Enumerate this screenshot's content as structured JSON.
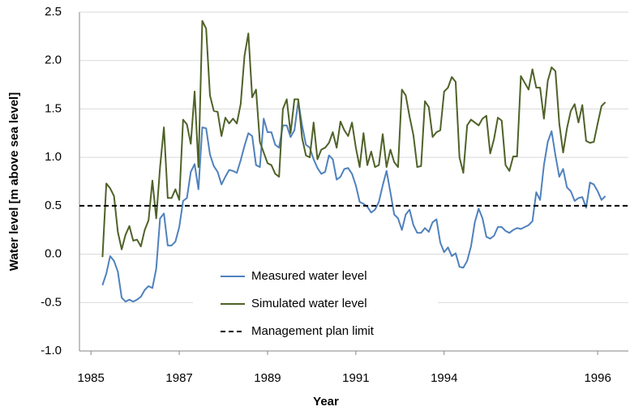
{
  "chart_data": {
    "type": "line",
    "x_label": "Year",
    "y_label": "Water level [m above sea level]",
    "x": [
      3,
      4,
      5,
      6,
      7,
      8,
      9,
      10,
      11,
      12,
      13,
      14,
      15,
      16,
      17,
      18,
      19,
      20,
      21,
      22,
      23,
      24,
      25,
      26,
      27,
      28,
      29,
      30,
      31,
      32,
      33,
      34,
      35,
      36,
      37,
      38,
      39,
      40,
      41,
      42,
      43,
      44,
      45,
      46,
      47,
      48,
      49,
      50,
      51,
      52,
      53,
      54,
      55,
      56,
      57,
      58,
      59,
      60,
      61,
      62,
      63,
      64,
      65,
      66,
      67,
      68,
      69,
      70,
      71,
      72,
      73,
      74,
      75,
      76,
      77,
      78,
      79,
      80,
      81,
      82,
      83,
      84,
      85,
      86,
      87,
      88,
      89,
      90,
      91,
      92,
      93,
      94,
      95,
      96,
      97,
      98,
      99,
      100,
      101,
      102,
      103,
      104,
      105,
      106,
      107,
      108,
      109,
      110,
      111,
      112,
      113,
      114,
      115,
      116,
      117,
      118,
      119,
      120,
      121,
      122,
      123,
      124,
      125,
      126,
      127,
      128,
      129,
      130,
      131,
      132,
      133,
      134
    ],
    "series": [
      {
        "name": "Measured water level",
        "color": "#4f81bd",
        "values": [
          -0.32,
          -0.2,
          -0.02,
          -0.07,
          -0.18,
          -0.45,
          -0.49,
          -0.47,
          -0.49,
          -0.47,
          -0.44,
          -0.37,
          -0.33,
          -0.35,
          -0.15,
          0.37,
          0.42,
          0.09,
          0.09,
          0.13,
          0.28,
          0.55,
          0.58,
          0.85,
          0.93,
          0.67,
          1.31,
          1.3,
          1.03,
          0.91,
          0.85,
          0.72,
          0.8,
          0.87,
          0.86,
          0.84,
          0.97,
          1.12,
          1.25,
          1.22,
          0.92,
          0.9,
          1.4,
          1.26,
          1.26,
          1.13,
          1.1,
          1.33,
          1.33,
          1.21,
          1.28,
          1.58,
          1.33,
          1.13,
          1.1,
          0.98,
          0.89,
          0.83,
          0.85,
          1.02,
          0.98,
          0.77,
          0.8,
          0.88,
          0.89,
          0.83,
          0.71,
          0.54,
          0.52,
          0.49,
          0.43,
          0.46,
          0.54,
          0.71,
          0.86,
          0.64,
          0.41,
          0.37,
          0.25,
          0.41,
          0.46,
          0.3,
          0.22,
          0.22,
          0.27,
          0.23,
          0.33,
          0.36,
          0.12,
          0.02,
          0.07,
          -0.02,
          0.01,
          -0.13,
          -0.14,
          -0.07,
          0.08,
          0.33,
          0.47,
          0.37,
          0.18,
          0.16,
          0.19,
          0.28,
          0.28,
          0.24,
          0.22,
          0.25,
          0.27,
          0.26,
          0.28,
          0.3,
          0.34,
          0.64,
          0.56,
          0.92,
          1.16,
          1.27,
          1.02,
          0.8,
          0.88,
          0.69,
          0.65,
          0.55,
          0.58,
          0.59,
          0.48,
          0.74,
          0.72,
          0.65,
          0.56,
          0.6
        ]
      },
      {
        "name": "Simulated water level",
        "color": "#4f6228",
        "values": [
          -0.03,
          0.73,
          0.68,
          0.6,
          0.23,
          0.05,
          0.2,
          0.29,
          0.14,
          0.15,
          0.08,
          0.25,
          0.35,
          0.76,
          0.37,
          0.9,
          1.31,
          0.58,
          0.58,
          0.67,
          0.56,
          1.39,
          1.34,
          1.14,
          1.68,
          0.9,
          2.41,
          2.33,
          1.64,
          1.48,
          1.47,
          1.22,
          1.41,
          1.35,
          1.4,
          1.35,
          1.55,
          2.05,
          2.28,
          1.62,
          1.7,
          1.16,
          1.05,
          0.94,
          0.92,
          0.83,
          0.8,
          1.5,
          1.6,
          1.25,
          1.6,
          1.6,
          1.2,
          1.02,
          1.0,
          1.36,
          0.98,
          1.08,
          1.1,
          1.15,
          1.26,
          1.1,
          1.37,
          1.28,
          1.22,
          1.36,
          1.1,
          0.9,
          1.25,
          0.92,
          1.06,
          0.9,
          0.92,
          1.24,
          0.9,
          1.08,
          0.95,
          0.9,
          1.7,
          1.64,
          1.42,
          1.23,
          0.9,
          0.91,
          1.58,
          1.52,
          1.21,
          1.26,
          1.28,
          1.68,
          1.72,
          1.83,
          1.78,
          1.0,
          0.84,
          1.33,
          1.39,
          1.36,
          1.33,
          1.4,
          1.43,
          1.04,
          1.19,
          1.41,
          1.38,
          0.92,
          0.86,
          1.01,
          1.01,
          1.84,
          1.77,
          1.7,
          1.91,
          1.72,
          1.72,
          1.4,
          1.79,
          1.93,
          1.89,
          1.35,
          1.05,
          1.3,
          1.48,
          1.55,
          1.36,
          1.54,
          1.17,
          1.15,
          1.16,
          1.35,
          1.53,
          1.57
        ]
      }
    ],
    "reference_lines": [
      {
        "name": "Management plan limit",
        "value": 0.5,
        "color": "#000000",
        "dashed": true
      }
    ],
    "xlim": [
      -3,
      140
    ],
    "xticks": [
      {
        "value": 0,
        "label": "1985"
      },
      {
        "value": 23,
        "label": "1987"
      },
      {
        "value": 46,
        "label": "1989"
      },
      {
        "value": 69,
        "label": "1991"
      },
      {
        "value": 92,
        "label": "1994"
      },
      {
        "value": 132,
        "label": "1996"
      }
    ],
    "ylim": [
      -1.0,
      2.5
    ],
    "yticks": [
      {
        "value": -1.0,
        "label": "-1.0"
      },
      {
        "value": -0.5,
        "label": "-0.5"
      },
      {
        "value": 0.0,
        "label": "0.0"
      },
      {
        "value": 0.5,
        "label": "0.5"
      },
      {
        "value": 1.0,
        "label": "1.0"
      },
      {
        "value": 1.5,
        "label": "1.5"
      },
      {
        "value": 2.0,
        "label": "2.0"
      },
      {
        "value": 2.5,
        "label": "2.5"
      }
    ],
    "grid": true
  }
}
